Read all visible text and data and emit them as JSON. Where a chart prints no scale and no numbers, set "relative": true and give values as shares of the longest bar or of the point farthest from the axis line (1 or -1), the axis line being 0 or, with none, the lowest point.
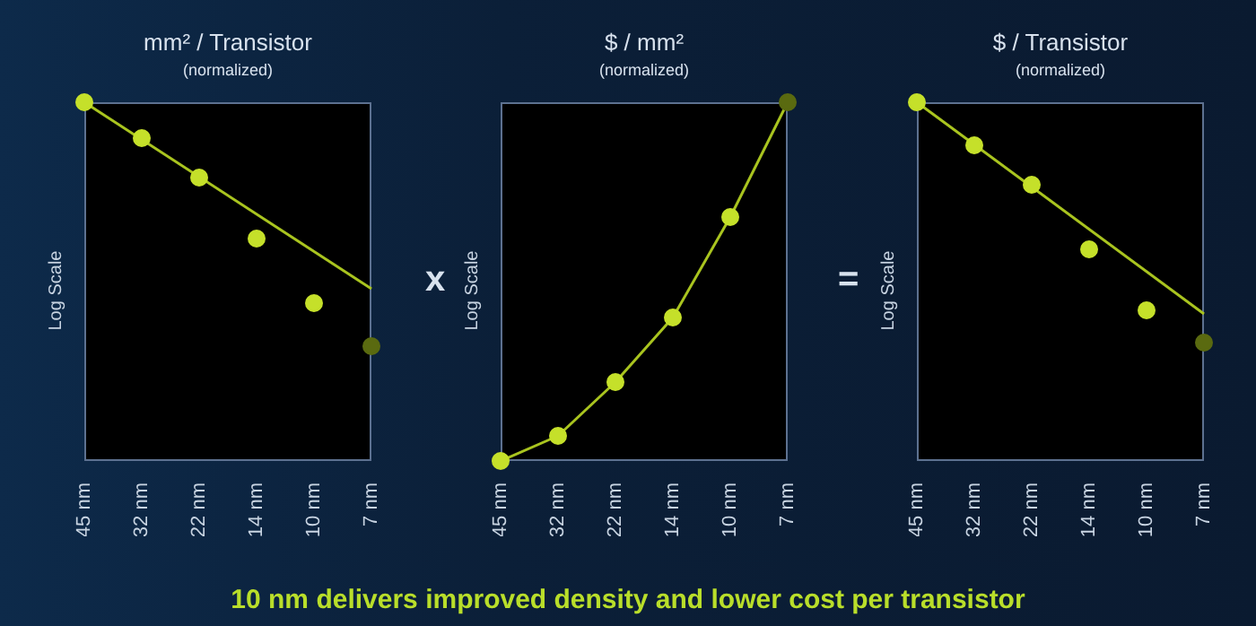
{
  "chart_data": [
    {
      "type": "line",
      "title": "mm² / Transistor",
      "subtitle": "(normalized)",
      "ylabel": "Log Scale",
      "categories": [
        "45 nm",
        "32 nm",
        "22 nm",
        "14 nm",
        "10 nm",
        "7 nm"
      ],
      "relative": true,
      "series": [
        {
          "type": "line",
          "color": "#a9c41f",
          "marker": "none",
          "values": [
            1,
            null,
            null,
            null,
            null,
            0.48
          ]
        },
        {
          "type": "scatter",
          "color": "#c5e02a",
          "marker": "circle",
          "values": [
            1,
            0.9,
            0.79,
            0.62,
            0.44,
            null
          ]
        },
        {
          "type": "scatter",
          "color": "#5a6a10",
          "marker": "circle",
          "values": [
            null,
            null,
            null,
            null,
            null,
            0.32
          ]
        }
      ]
    },
    {
      "type": "line",
      "title": "$ / mm²",
      "subtitle": "(normalized)",
      "ylabel": "Log Scale",
      "annotations": [
        "x"
      ],
      "categories": [
        "45 nm",
        "32 nm",
        "22 nm",
        "14 nm",
        "10 nm",
        "7 nm"
      ],
      "relative": true,
      "series": [
        {
          "type": "line",
          "color": "#a9c41f",
          "marker": "none",
          "values": [
            0,
            0.07,
            0.22,
            0.4,
            0.68,
            1
          ]
        },
        {
          "type": "scatter",
          "color": "#c5e02a",
          "marker": "circle",
          "values": [
            0,
            0.07,
            0.22,
            0.4,
            0.68,
            null
          ]
        },
        {
          "type": "scatter",
          "color": "#5a6a10",
          "marker": "circle",
          "values": [
            null,
            null,
            null,
            null,
            null,
            1
          ]
        }
      ]
    },
    {
      "type": "line",
      "title": "$ / Transistor",
      "subtitle": "(normalized)",
      "ylabel": "Log Scale",
      "annotations": [
        "=",
        "10 nm delivers improved density and lower cost per transistor"
      ],
      "categories": [
        "45 nm",
        "32 nm",
        "22 nm",
        "14 nm",
        "10 nm",
        "7 nm"
      ],
      "relative": true,
      "series": [
        {
          "type": "line",
          "color": "#a9c41f",
          "marker": "none",
          "values": [
            1,
            null,
            null,
            null,
            null,
            0.41
          ]
        },
        {
          "type": "scatter",
          "color": "#c5e02a",
          "marker": "circle",
          "values": [
            1,
            0.88,
            0.77,
            0.59,
            0.42,
            null
          ]
        },
        {
          "type": "scatter",
          "color": "#5a6a10",
          "marker": "circle",
          "values": [
            null,
            null,
            null,
            null,
            null,
            0.33
          ]
        }
      ]
    }
  ]
}
